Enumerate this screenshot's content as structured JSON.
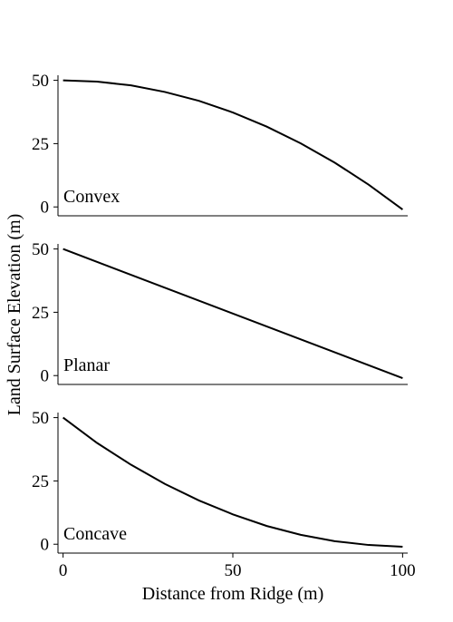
{
  "chart_data": {
    "type": "line",
    "xlabel": "Distance from Ridge (m)",
    "ylabel": "Land Surface Elevation (m)",
    "x_ticks": [
      "0",
      "50",
      "100"
    ],
    "y_ticks": [
      "0",
      "25",
      "50"
    ],
    "xlim": [
      -1.5,
      101.5
    ],
    "ylim": [
      -3.5,
      52
    ],
    "panels": [
      {
        "label": "Convex",
        "x": [
          0,
          10,
          20,
          30,
          40,
          50,
          60,
          70,
          80,
          90,
          100
        ],
        "y": [
          50,
          49.5,
          48,
          45.4,
          41.9,
          37.3,
          31.7,
          25.1,
          17.5,
          8.8,
          -1
        ]
      },
      {
        "label": "Planar",
        "x": [
          0,
          100
        ],
        "y": [
          50,
          -1
        ]
      },
      {
        "label": "Concave",
        "x": [
          0,
          10,
          20,
          30,
          40,
          50,
          60,
          70,
          80,
          90,
          100
        ],
        "y": [
          50,
          40,
          31.4,
          23.8,
          17.3,
          11.8,
          7.2,
          3.7,
          1.2,
          -0.3,
          -1
        ]
      }
    ]
  }
}
